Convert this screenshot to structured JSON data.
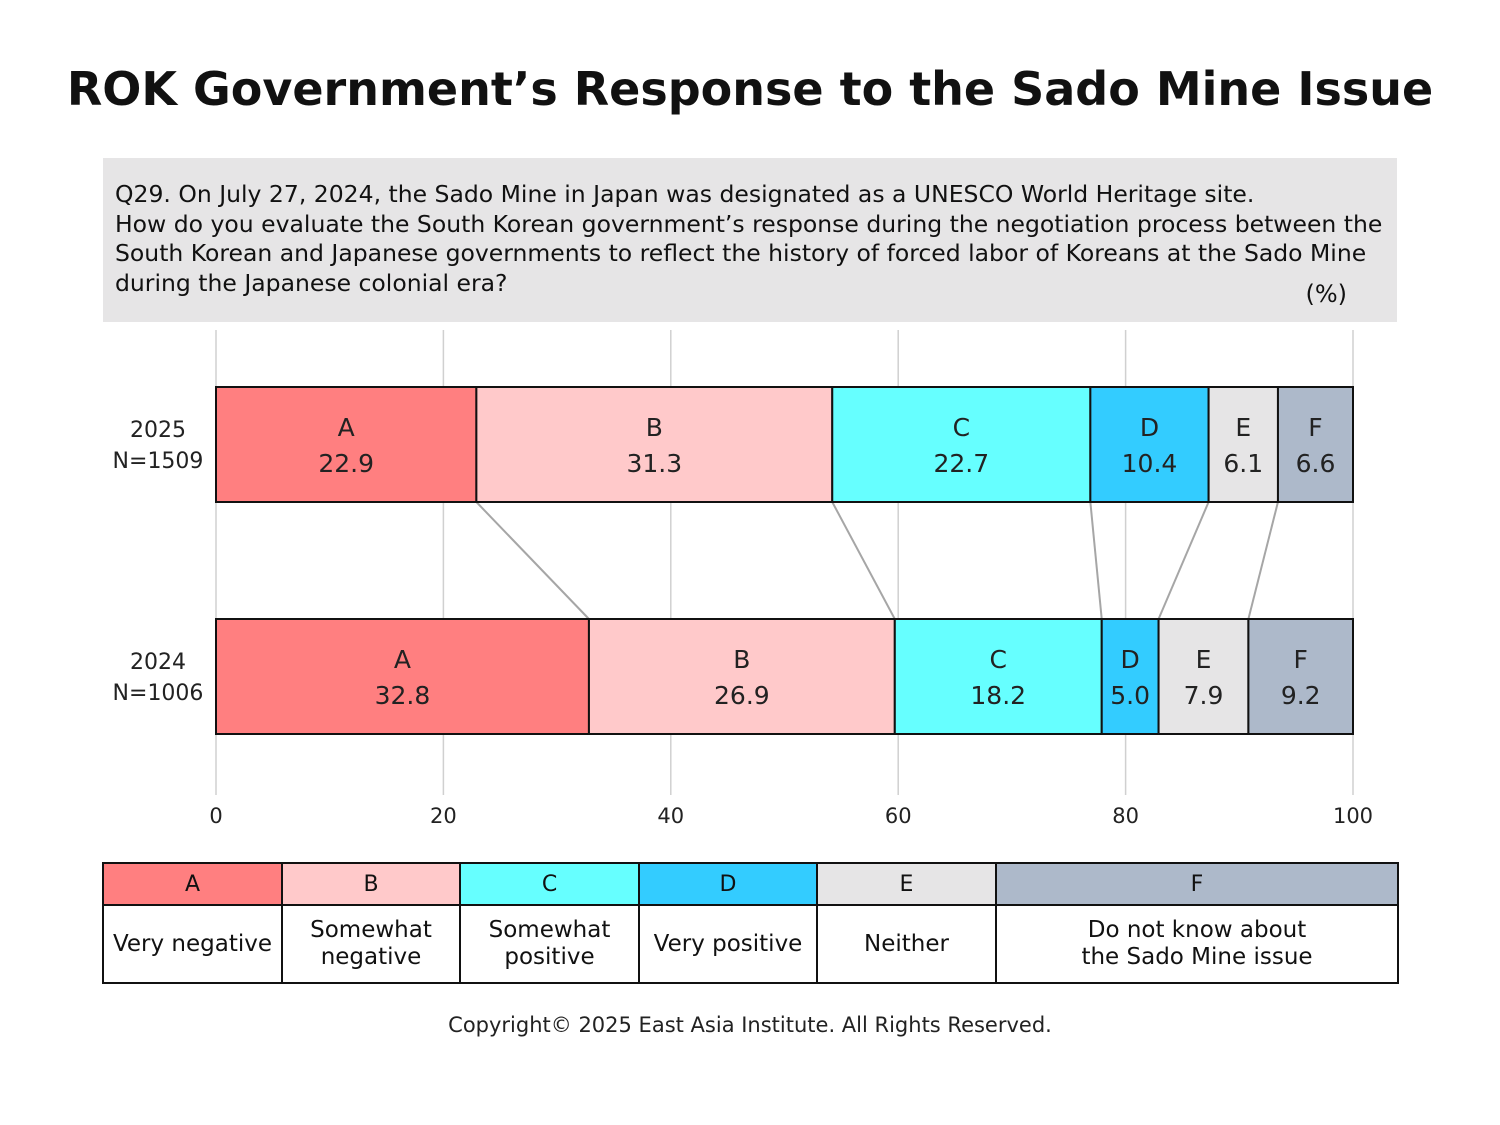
{
  "title": "ROK Government’s Response to the Sado Mine Issue",
  "question": "Q29. On July 27, 2024, the Sado Mine in Japan was designated as a UNESCO World Heritage site.\nHow do you evaluate the South Korean government’s response during the negotiation process between the South Korean and Japanese governments to reflect the history of forced labor of Koreans at the Sado Mine during the Japanese colonial era?",
  "unit": "(%)",
  "chart_data": {
    "type": "bar",
    "orientation": "horizontal",
    "stacked": true,
    "categories": [
      "2025\nN=1509",
      "2024\nN=1006"
    ],
    "series": [
      {
        "name": "A",
        "values": [
          22.9,
          32.8
        ],
        "labels": [
          "22.9",
          "32.8"
        ],
        "color": "#ff7f80"
      },
      {
        "name": "B",
        "values": [
          31.3,
          26.9
        ],
        "labels": [
          "31.3",
          "26.9"
        ],
        "color": "#ffc9ca"
      },
      {
        "name": "C",
        "values": [
          22.7,
          18.2
        ],
        "labels": [
          "22.7",
          "18.2"
        ],
        "color": "#66ffff"
      },
      {
        "name": "D",
        "values": [
          10.4,
          5.0
        ],
        "labels": [
          "10.4",
          "5.0"
        ],
        "color": "#33ccff"
      },
      {
        "name": "E",
        "values": [
          6.1,
          7.9
        ],
        "labels": [
          "6.1",
          "7.9"
        ],
        "color": "#e6e5e6"
      },
      {
        "name": "F",
        "values": [
          6.6,
          9.2
        ],
        "labels": [
          "6.6",
          "9.2"
        ],
        "color": "#adb9ca"
      }
    ],
    "xlim": [
      0,
      100
    ],
    "xticks": [
      "0",
      "20",
      "40",
      "60",
      "80",
      "100"
    ],
    "grid": true,
    "connector_lines": true
  },
  "legend": [
    {
      "code": "A",
      "label": "Very negative",
      "color": "#ff7f80"
    },
    {
      "code": "B",
      "label": "Somewhat\nnegative",
      "color": "#ffc9ca"
    },
    {
      "code": "C",
      "label": "Somewhat\npositive",
      "color": "#66ffff"
    },
    {
      "code": "D",
      "label": "Very positive",
      "color": "#33ccff"
    },
    {
      "code": "E",
      "label": "Neither",
      "color": "#e6e5e6"
    },
    {
      "code": "F",
      "label": "Do not know about\nthe Sado Mine issue",
      "color": "#adb9ca"
    }
  ],
  "copyright": "Copyright© 2025 East Asia Institute. All Rights Reserved."
}
